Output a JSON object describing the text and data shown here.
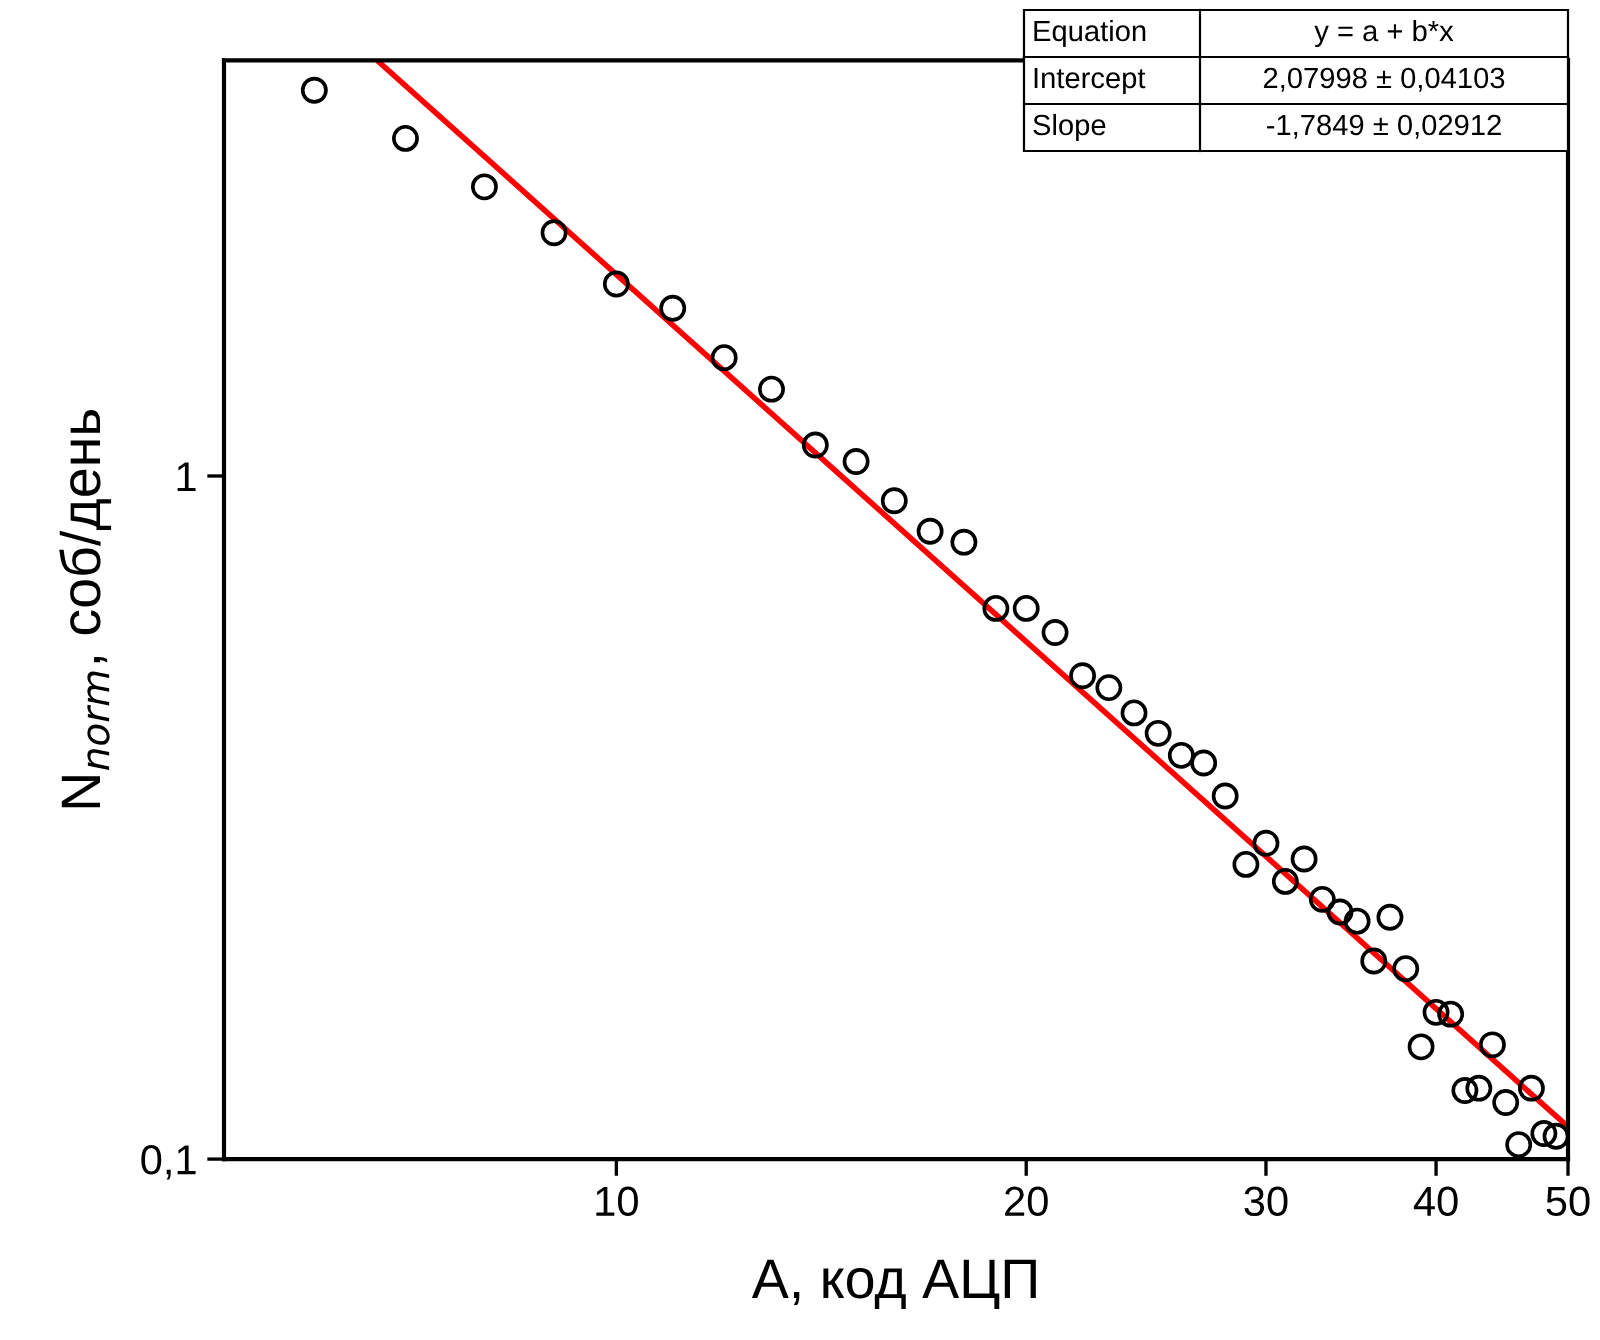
{
  "chart_data": {
    "type": "scatter",
    "xlabel": "A, код АЦП",
    "ylabel": "N$_{norm}$, соб/день",
    "log": "xy",
    "grid": false,
    "xlim": [
      5.15,
      50
    ],
    "xticks": [
      10,
      20,
      30,
      40,
      50
    ],
    "ylim": [
      0.1,
      4.06
    ],
    "yticks": [
      {
        "value": 0.1,
        "label": "0,1"
      },
      1
    ],
    "annotations": [
      "Equation",
      "y = a + b*x",
      "Intercept",
      "2,07998 ± 0,04103",
      "Slope",
      "-1,7849 ± 0,02912"
    ],
    "series": [
      {
        "color": "#000000",
        "marker": "circle",
        "x": [
          6,
          7,
          8,
          9,
          10,
          11,
          12,
          13,
          14,
          15,
          16,
          17,
          18,
          19,
          20,
          21,
          22,
          23,
          24,
          25,
          26,
          27,
          28,
          29,
          30,
          31,
          32,
          33,
          34,
          35,
          36,
          37,
          38,
          39,
          40,
          41,
          42,
          43,
          44,
          45,
          46,
          47,
          48,
          49
        ],
        "values": [
          3.67,
          3.12,
          2.65,
          2.27,
          1.91,
          1.76,
          1.49,
          1.34,
          1.11,
          1.05,
          0.92,
          0.83,
          0.8,
          0.64,
          0.64,
          0.59,
          0.51,
          0.49,
          0.45,
          0.42,
          0.39,
          0.38,
          0.34,
          0.27,
          0.29,
          0.255,
          0.275,
          0.24,
          0.23,
          0.223,
          0.195,
          0.226,
          0.19,
          0.146,
          0.164,
          0.163,
          0.126,
          0.127,
          0.147,
          0.121,
          0.105,
          0.127,
          0.109,
          0.108
        ]
      },
      {
        "type": "line",
        "color": "#ff0000",
        "marker": "none",
        "line_style": "solid",
        "x": [
          6.7,
          50
        ],
        "values": [
          4.03,
          0.1115
        ]
      }
    ]
  }
}
